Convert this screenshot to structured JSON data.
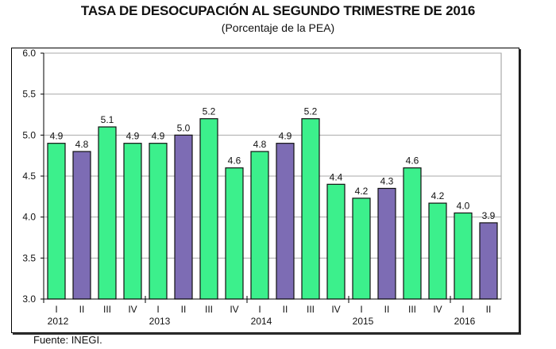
{
  "chart_data": {
    "type": "bar",
    "title": "TASA DE DESOCUPACIÓN AL SEGUNDO TRIMESTRE DE 2016",
    "subtitle": "(Porcentaje de la PEA)",
    "source": "Fuente: INEGI.",
    "categories": [
      "I",
      "II",
      "III",
      "IV",
      "I",
      "II",
      "III",
      "IV",
      "I",
      "II",
      "III",
      "IV",
      "I",
      "II",
      "III",
      "IV",
      "I",
      "II"
    ],
    "years": [
      {
        "label": "2012",
        "start": 0
      },
      {
        "label": "2013",
        "start": 4
      },
      {
        "label": "2014",
        "start": 8
      },
      {
        "label": "2015",
        "start": 12
      },
      {
        "label": "2016",
        "start": 16
      }
    ],
    "values": [
      4.9,
      4.8,
      5.1,
      4.9,
      4.9,
      5.0,
      5.2,
      4.6,
      4.8,
      4.9,
      5.2,
      4.4,
      4.23,
      4.35,
      4.6,
      4.17,
      4.05,
      3.93
    ],
    "data_labels": [
      "4.9",
      "4.8",
      "5.1",
      "4.9",
      "4.9",
      "5.0",
      "5.2",
      "4.6",
      "4.8",
      "4.9",
      "5.2",
      "4.4",
      "4.2",
      "4.3",
      "4.6",
      "4.2",
      "4.0",
      "3.9"
    ],
    "ylim": [
      3.0,
      6.0
    ],
    "yticks": [
      "3.0",
      "3.5",
      "4.0",
      "4.5",
      "5.0",
      "5.5",
      "6.0"
    ],
    "grid": true,
    "colors": {
      "default": "#3cf08c",
      "second_quarter": "#7d6cb4",
      "border": "#111111"
    }
  }
}
